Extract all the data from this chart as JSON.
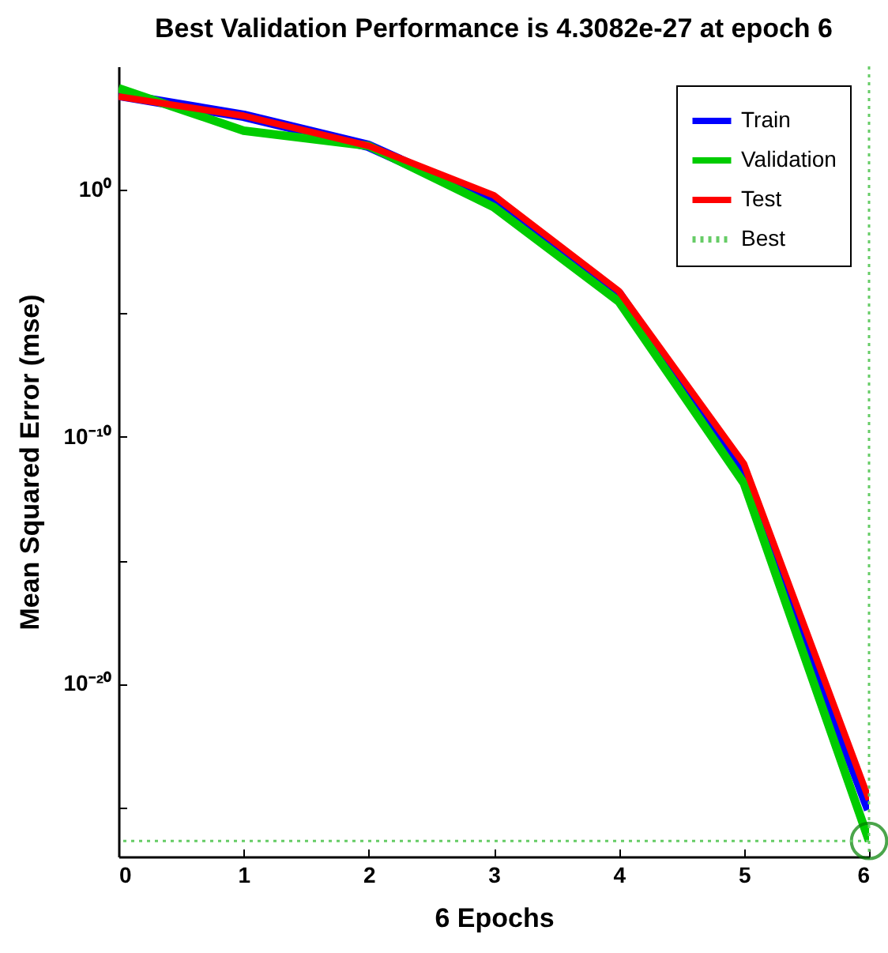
{
  "chart_data": {
    "type": "line",
    "title": "Best Validation Performance is 4.3082e-27 at epoch 6",
    "xlabel": "6 Epochs",
    "ylabel": "Mean Squared Error  (mse)",
    "x": [
      0,
      1,
      2,
      3,
      4,
      5,
      6
    ],
    "series": [
      {
        "name": "Train",
        "color": "#0000ff",
        "values": [
          7000,
          1000,
          60,
          0.3,
          6e-05,
          2.5e-12,
          8e-26
        ]
      },
      {
        "name": "Validation",
        "color": "#00cc00",
        "values": [
          13000,
          250,
          60,
          0.2,
          3e-05,
          1.3e-12,
          4.3082e-27
        ]
      },
      {
        "name": "Test",
        "color": "#ff0000",
        "values": [
          6000,
          1000,
          60,
          0.6,
          8e-05,
          8e-12,
          2e-25
        ]
      },
      {
        "type": "scatter",
        "x": [
          6
        ],
        "values": [
          4.3082e-27
        ],
        "color": "#008000",
        "marker": "circle"
      }
    ],
    "ref_lines": [
      {
        "axis": "y",
        "value": 4.3082e-27,
        "label": "Best",
        "color": "#66cc66",
        "line_style": "dotted"
      },
      {
        "axis": "x",
        "value": 6,
        "color": "#66cc66",
        "line_style": "dotted"
      }
    ],
    "log": "y",
    "xlim": [
      0,
      6
    ],
    "xticks": [
      0,
      1,
      2,
      3,
      4,
      5,
      6
    ],
    "ylim": [
      1e-27,
      100000
    ],
    "yticks": [
      {
        "value": 1e-25,
        "label": null
      },
      {
        "value": 1e-20,
        "label": "10⁻²⁰"
      },
      {
        "value": 1e-15,
        "label": null
      },
      {
        "value": 1e-10,
        "label": "10⁻¹⁰"
      },
      {
        "value": 1e-05,
        "label": null
      },
      {
        "value": 1,
        "label": "10⁰"
      }
    ],
    "legend": "top right",
    "grid": false
  }
}
